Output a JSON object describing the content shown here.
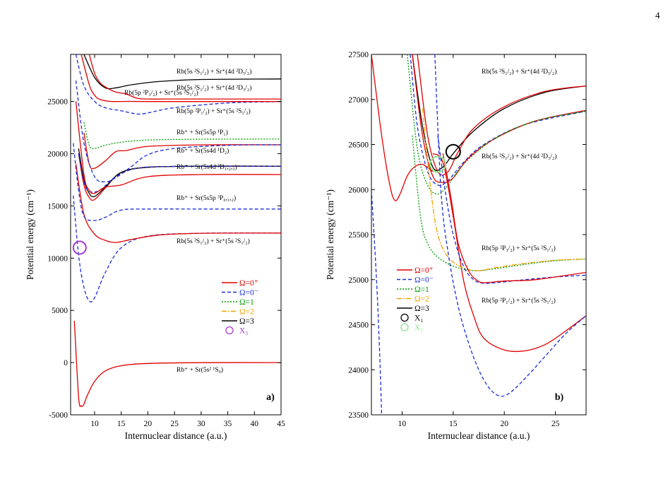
{
  "page": {
    "number": "4"
  },
  "colors": {
    "omega_0plus": "#e00000",
    "omega_0minus": "#1c2fd6",
    "omega_1": "#009a00",
    "omega_2": "#f2a000",
    "omega_3": "#000000",
    "marker_x3": "#a53ad6",
    "marker_x1": "#000000",
    "marker_x2": "#8ee38e"
  },
  "chart_data": [
    {
      "type": "line",
      "panel_label": "a)",
      "xlabel": "Internuclear distance (a.u.)",
      "ylabel": "Potential energy (cm⁻¹)",
      "xlim": [
        5.5,
        45
      ],
      "ylim": [
        -5000,
        29500
      ],
      "xticks": [
        10,
        15,
        20,
        25,
        30,
        35,
        40,
        45
      ],
      "yticks": [
        -5000,
        0,
        5000,
        10000,
        15000,
        20000,
        25000
      ],
      "grid": false,
      "legend": {
        "position": "lower-right",
        "entries": [
          {
            "label": "Ω=0⁺",
            "color": "#e00000",
            "style": "solid"
          },
          {
            "label": "Ω=0⁻",
            "color": "#1c2fd6",
            "style": "dashed"
          },
          {
            "label": "Ω=1",
            "color": "#009a00",
            "style": "dotted"
          },
          {
            "label": "Ω=2",
            "color": "#f2a000",
            "style": "dashdot"
          },
          {
            "label": "Ω=3",
            "color": "#000000",
            "style": "solid"
          },
          {
            "label": "X₃",
            "color": "#a53ad6",
            "style": "circle"
          }
        ]
      },
      "asymptotes": [
        {
          "label": "Rb(5s ²S₁/₂) + Sr⁺(4d ²D₅/₂)",
          "energy": 27150
        },
        {
          "label": "Rb(5s ²S₁/₂) + Sr⁺(4d ²D₃/₂)",
          "energy": 26870
        },
        {
          "label": "Rb(5p ²P₃/₂) + Sr⁺(5s ²S₁/₂)",
          "energy": 25230
        },
        {
          "label": "Rb(5p ²P₁/₂) + Sr⁺(5s ²S₁/₂)",
          "energy": 24990
        },
        {
          "label": "Rb⁺ + Sr(5s5p ¹P₁)",
          "energy": 21400
        },
        {
          "label": "Rb⁺ + Sr(5s4d ¹D₂)",
          "energy": 20850
        },
        {
          "label": "Rb⁺ + Sr(5s4d ³D₁,₂,₃)",
          "energy": 18800
        },
        {
          "label": "Rb⁺ + Sr(5s5p ³P₀,₁,₂)",
          "energy": 14700
        },
        {
          "label": "Rb(5s ²S₁/₂) + Sr⁺(5s ²S₁/₂)",
          "energy": 12400
        },
        {
          "label": "Rb⁺ + Sr(5s² ¹S₀)",
          "energy": 0
        }
      ],
      "series": [
        {
          "name": "Ω=0⁺",
          "x": [
            6.2,
            7.0,
            7.5,
            8.0,
            8.5,
            10.0,
            12.0,
            15.0,
            20.0,
            30.0,
            45.0
          ],
          "y": [
            4000,
            -3300,
            -4150,
            -4000,
            -3300,
            -1800,
            -800,
            -300,
            -80,
            -10,
            0
          ]
        },
        {
          "name": "Ω=0⁻",
          "x": [
            6.0,
            7.0,
            8.0,
            9.0,
            10.0,
            12.0,
            15.0,
            20.0,
            30.0,
            45.0
          ],
          "y": [
            16000,
            10300,
            7200,
            5900,
            6200,
            8600,
            11000,
            12100,
            12380,
            12400
          ]
        },
        {
          "name": "Ω=0⁺",
          "x": [
            6.5,
            8.0,
            10.0,
            12.0,
            14.0,
            17.0,
            22.0,
            30.0,
            45.0
          ],
          "y": [
            19000,
            14200,
            12300,
            11700,
            11500,
            11800,
            12200,
            12380,
            12400
          ]
        },
        {
          "name": "Ω=0⁺",
          "x": [
            7.0,
            8.0,
            9.0,
            10.0,
            12.0,
            15.0,
            20.0,
            30.0,
            45.0
          ],
          "y": [
            20000,
            17000,
            15800,
            15600,
            16700,
            18200,
            18700,
            18800,
            18800
          ]
        },
        {
          "name": "Ω=3",
          "x": [
            7.0,
            8.0,
            9.0,
            10.0,
            12.0,
            15.0,
            20.0,
            30.0,
            45.0
          ],
          "y": [
            20500,
            17500,
            16200,
            15900,
            16800,
            18200,
            18700,
            18800,
            18800
          ]
        },
        {
          "name": "Ω=0⁻",
          "x": [
            7.0,
            8.0,
            9.0,
            11.0,
            14.0,
            18.0,
            25.0,
            45.0
          ],
          "y": [
            20000,
            17300,
            16400,
            16500,
            17800,
            18600,
            18780,
            18800
          ]
        },
        {
          "name": "Ω=0⁺",
          "x": [
            8.0,
            9.0,
            10.0,
            12.0,
            14.0,
            16.0,
            20.0,
            30.0,
            45.0
          ],
          "y": [
            22000,
            19000,
            18600,
            19300,
            20200,
            20300,
            20700,
            20840,
            20850
          ]
        },
        {
          "name": "Ω=1",
          "x": [
            8.0,
            9.0,
            10.0,
            12.0,
            15.0,
            20.0,
            30.0,
            45.0
          ],
          "y": [
            23000,
            20800,
            20500,
            20800,
            21100,
            21300,
            21380,
            21400
          ]
        },
        {
          "name": "Ω=0⁻",
          "x": [
            6.5,
            8.0,
            10.0,
            12.0,
            14.0,
            17.0,
            20.0,
            25.0,
            35.0,
            45.0
          ],
          "y": [
            27000,
            21000,
            17800,
            17300,
            17700,
            18800,
            19900,
            20500,
            20800,
            20850
          ]
        },
        {
          "name": "Ω=0⁻",
          "x": [
            6.0,
            7.0,
            8.0,
            10.0,
            12.0,
            15.0,
            20.0,
            30.0,
            45.0
          ],
          "y": [
            21000,
            16500,
            14000,
            13600,
            13900,
            14600,
            14700,
            14700,
            14700
          ]
        },
        {
          "name": "Ω=0⁺",
          "x": [
            6.5,
            8.0,
            9.0,
            10.0,
            12.0,
            15.0,
            20.0,
            30.0,
            45.0
          ],
          "y": [
            25000,
            18000,
            16500,
            16200,
            16800,
            17000,
            17800,
            18000,
            18000
          ]
        },
        {
          "name": "Ω=0⁻",
          "x": [
            6.5,
            8.0,
            10.0,
            12.0,
            15.0,
            18.0,
            20.0,
            25.0,
            35.0,
            45.0
          ],
          "y": [
            29500,
            26500,
            25000,
            24400,
            24100,
            23800,
            23900,
            24400,
            24850,
            24990
          ]
        },
        {
          "name": "Ω=0⁺",
          "x": [
            7.5,
            9.0,
            10.0,
            11.0,
            13.0,
            16.0,
            20.0,
            30.0,
            45.0
          ],
          "y": [
            29500,
            26600,
            25600,
            25200,
            25000,
            25000,
            24990,
            24990,
            24990
          ]
        },
        {
          "name": "Ω=3",
          "x": [
            8.0,
            10.0,
            12.0,
            14.0,
            17.0,
            22.0,
            30.0,
            45.0
          ],
          "y": [
            29500,
            27300,
            26300,
            26300,
            26600,
            26900,
            27100,
            27150
          ]
        },
        {
          "name": "Ω=0⁺",
          "x": [
            9.0,
            10.0,
            11.0,
            12.0,
            13.0,
            14.0,
            15.0,
            16.0,
            18.0,
            20.0,
            25.0,
            30.0,
            45.0
          ],
          "y": [
            29500,
            27700,
            26800,
            26400,
            26100,
            25900,
            25800,
            25700,
            25300,
            25230,
            25230,
            25230,
            25230
          ]
        }
      ]
    },
    {
      "type": "line",
      "panel_label": "b)",
      "xlabel": "Internuclear distance (a.u.)",
      "ylabel": "Potential energy (cm⁻¹)",
      "xlim": [
        7,
        28
      ],
      "ylim": [
        23500,
        27500
      ],
      "xticks": [
        10,
        15,
        20,
        25
      ],
      "yticks": [
        23500,
        24000,
        24500,
        25000,
        25500,
        26000,
        26500,
        27000,
        27500
      ],
      "grid": false,
      "legend": {
        "position": "center-left",
        "entries": [
          {
            "label": "Ω=0⁺",
            "color": "#e00000",
            "style": "solid"
          },
          {
            "label": "Ω=0⁻",
            "color": "#1c2fd6",
            "style": "dashed"
          },
          {
            "label": "Ω=1",
            "color": "#009a00",
            "style": "dotted"
          },
          {
            "label": "Ω=2",
            "color": "#f2a000",
            "style": "dashdot"
          },
          {
            "label": "Ω=3",
            "color": "#000000",
            "style": "solid"
          },
          {
            "label": "X₁",
            "color": "#000000",
            "style": "circle"
          },
          {
            "label": "X₂",
            "color": "#8ee38e",
            "style": "circle"
          }
        ]
      },
      "asymptotes": [
        {
          "label": "Rb(5s ²S₁/₂) + Sr⁺(4d ²D₅/₂)",
          "energy": 27150
        },
        {
          "label": "Rb(5s ²S₁/₂) + Sr⁺(4d ²D₃/₂)",
          "energy": 26870
        },
        {
          "label": "Rb(5p ²P₃/₂) + Sr⁺(5s ²S₁/₂)",
          "energy": 25230
        },
        {
          "label": "Rb(5p ²P₁/₂) + Sr⁺(5s ²S₁/₂)",
          "energy": 24990
        }
      ],
      "series": [
        {
          "name": "Ω=3",
          "x": [
            11.0,
            12.0,
            13.0,
            14.0,
            15.0,
            17.0,
            20.0,
            24.0,
            28.0
          ],
          "y": [
            27500,
            26700,
            26250,
            26250,
            26400,
            26650,
            26900,
            27080,
            27150
          ]
        },
        {
          "name": "Ω=0⁺",
          "x": [
            11.5,
            12.5,
            13.5,
            14.5,
            15.5,
            17.0,
            20.0,
            24.0,
            28.0
          ],
          "y": [
            27500,
            26600,
            26200,
            26200,
            26420,
            26680,
            26920,
            27090,
            27150
          ]
        },
        {
          "name": "Ω=0⁻",
          "x": [
            10.8,
            11.5,
            12.5,
            13.5,
            14.5,
            16.0,
            18.0,
            22.0,
            28.0
          ],
          "y": [
            27500,
            26700,
            26200,
            26050,
            26100,
            26300,
            26500,
            26720,
            26870
          ]
        },
        {
          "name": "Ω=0⁺",
          "x": [
            11.0,
            12.0,
            13.0,
            14.0,
            15.0,
            16.5,
            19.0,
            23.0,
            28.0
          ],
          "y": [
            27500,
            26600,
            26150,
            26080,
            26130,
            26350,
            26560,
            26760,
            26880
          ]
        },
        {
          "name": "Ω=1",
          "x": [
            10.5,
            11.5,
            12.5,
            13.5,
            14.5,
            16.0,
            19.0,
            23.0,
            28.0
          ],
          "y": [
            27500,
            26450,
            26050,
            25950,
            26050,
            26280,
            26560,
            26760,
            26870
          ]
        },
        {
          "name": "Ω=0⁺",
          "x": [
            7.0,
            8.0,
            8.8,
            9.3,
            9.8,
            10.5,
            11.2,
            12.0,
            13.0
          ],
          "y": [
            27500,
            26600,
            26050,
            25880,
            25950,
            26150,
            26250,
            26280,
            26200
          ]
        },
        {
          "name": "Ω=0⁺",
          "x": [
            13.0,
            14.0,
            15.0,
            16.0,
            17.0,
            18.0,
            20.0,
            22.0,
            24.0,
            26.0,
            28.0
          ],
          "y": [
            26400,
            26300,
            25700,
            25000,
            24600,
            24350,
            24220,
            24210,
            24280,
            24430,
            24600
          ]
        },
        {
          "name": "Ω=1",
          "x": [
            11.0,
            11.8,
            12.5,
            13.5,
            15.0,
            17.0,
            19.0,
            22.0,
            25.0,
            28.0
          ],
          "y": [
            26600,
            25700,
            25400,
            25250,
            25150,
            25100,
            25120,
            25170,
            25210,
            25230
          ]
        },
        {
          "name": "Ω=2",
          "x": [
            12.0,
            12.8,
            13.5,
            14.5,
            16.0,
            17.5,
            19.0,
            22.0,
            25.0,
            28.0
          ],
          "y": [
            26900,
            26000,
            25500,
            25250,
            25130,
            25100,
            25130,
            25180,
            25215,
            25230
          ]
        },
        {
          "name": "Ω=0⁻",
          "x": [
            13.5,
            14.2,
            15.0,
            16.0,
            17.0,
            18.0,
            19.5,
            22.0,
            25.0,
            28.0
          ],
          "y": [
            26600,
            26000,
            25500,
            25150,
            25000,
            24960,
            24970,
            25000,
            25030,
            25050
          ]
        },
        {
          "name": "Ω=0⁺",
          "x": [
            14.0,
            14.8,
            15.5,
            16.5,
            17.5,
            18.5,
            20.0,
            23.0,
            28.0
          ],
          "y": [
            26400,
            25900,
            25400,
            25100,
            24980,
            24970,
            24985,
            25000,
            25080
          ]
        },
        {
          "name": "Ω=0⁻",
          "x": [
            13.2,
            13.8,
            14.5,
            15.5,
            16.5,
            17.5,
            18.5,
            19.5,
            20.5,
            22.0,
            24.0,
            26.0,
            28.0
          ],
          "y": [
            27500,
            26000,
            25300,
            24700,
            24300,
            24000,
            23800,
            23710,
            23740,
            23900,
            24150,
            24400,
            24600
          ]
        },
        {
          "name": "Ω=0⁻",
          "x": [
            7.0,
            7.5,
            7.8,
            8.0
          ],
          "y": [
            26000,
            25000,
            24200,
            23500
          ]
        }
      ]
    }
  ]
}
